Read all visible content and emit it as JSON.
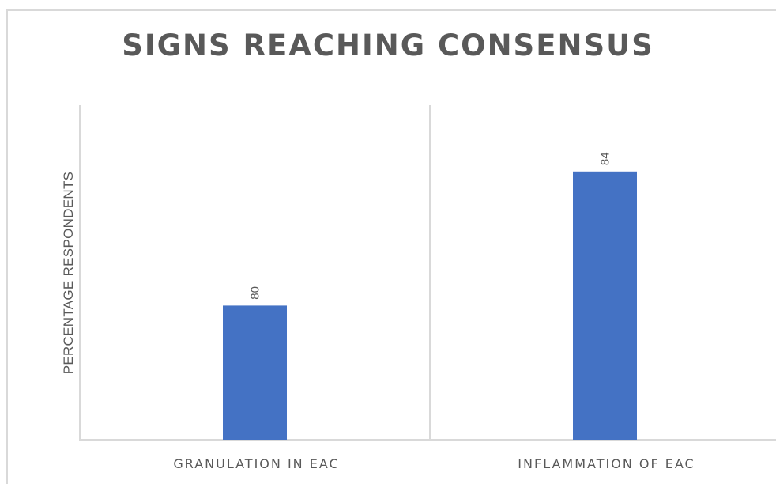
{
  "chart_data": {
    "type": "bar",
    "title": "SIGNS REACHING CONSENSUS",
    "xlabel": "",
    "ylabel": "PERCENTAGE RESPONDENTS",
    "categories": [
      "GRANULATION IN EAC",
      "INFLAMMATION OF EAC"
    ],
    "values": [
      80,
      84
    ],
    "data_labels": [
      "80",
      "84"
    ],
    "ylim": [
      76,
      86
    ],
    "grid": false,
    "legend": "none",
    "colors": {
      "bar": "#4472c4",
      "axis": "#d9d9d9",
      "text": "#595959"
    }
  }
}
